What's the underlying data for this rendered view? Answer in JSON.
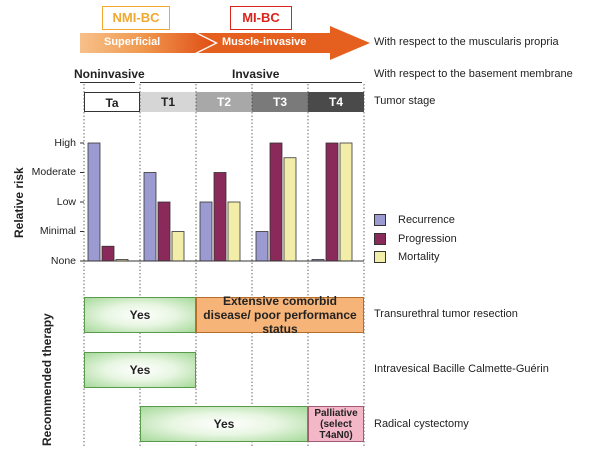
{
  "header": {
    "nmi_label": "NMI-BC",
    "mi_label": "MI-BC",
    "superficial": "Superficial",
    "muscle_invasive": "Muscle-invasive",
    "muscularis_note": "With respect to the muscularis propria",
    "noninvasive": "Noninvasive",
    "invasive": "Invasive",
    "basement_note": "With respect to the basement membrane",
    "tumor_stage_note": "Tumor stage",
    "colors": {
      "nmi": "#f0a830",
      "mi": "#d9241c",
      "arrow_light": "#f3a35a",
      "arrow_dark": "#e5601e"
    }
  },
  "stages": [
    {
      "label": "Ta",
      "bg": "#ffffff",
      "fg": "#000000"
    },
    {
      "label": "T1",
      "bg": "#d6d6d6",
      "fg": "#000000"
    },
    {
      "label": "T2",
      "bg": "#a8a8a8",
      "fg": "#ffffff"
    },
    {
      "label": "T3",
      "bg": "#7a7a7a",
      "fg": "#ffffff"
    },
    {
      "label": "T4",
      "bg": "#4a4a4a",
      "fg": "#ffffff"
    }
  ],
  "chart_data": {
    "type": "bar",
    "title": "",
    "ylabel": "Relative risk",
    "xlabel": "",
    "categories": [
      "Ta",
      "T1",
      "T2",
      "T3",
      "T4"
    ],
    "y_tick_labels": [
      "None",
      "Minimal",
      "Low",
      "Moderate",
      "High"
    ],
    "ylim": [
      0,
      4
    ],
    "grid": false,
    "legend_position": "right",
    "series": [
      {
        "name": "Recurrence",
        "color": "#9b9bd2",
        "values": [
          4,
          3,
          2,
          1,
          0.05
        ]
      },
      {
        "name": "Progression",
        "color": "#8a2a5a",
        "values": [
          0.5,
          2,
          3,
          4,
          4
        ]
      },
      {
        "name": "Mortality",
        "color": "#f2eeaa",
        "values": [
          0.05,
          1,
          2,
          3.5,
          4
        ]
      }
    ]
  },
  "therapy": {
    "axis_label": "Recommended therapy",
    "rows": [
      {
        "label": "Transurethral tumor resection",
        "boxes": [
          {
            "text": "Yes",
            "kind": "yes"
          },
          {
            "text": "Extensive comorbid disease/ poor performance status",
            "kind": "orange"
          }
        ]
      },
      {
        "label": "Intravesical Bacille Calmette-Guérin",
        "boxes": [
          {
            "text": "Yes",
            "kind": "yes"
          }
        ]
      },
      {
        "label": "Radical cystectomy",
        "boxes": [
          {
            "text": "Yes",
            "kind": "yes"
          },
          {
            "text": "Palliative (select T4aN0)",
            "kind": "pink"
          }
        ]
      }
    ]
  }
}
